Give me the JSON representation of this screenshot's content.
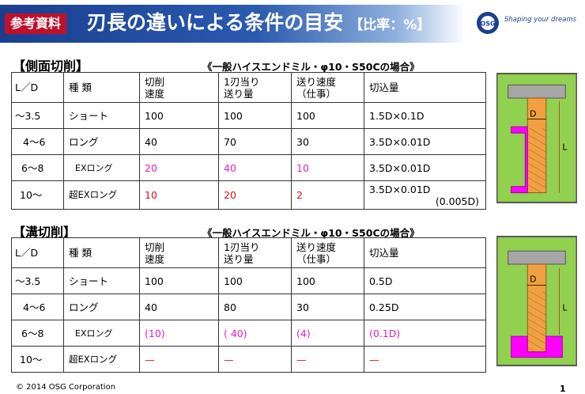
{
  "header": {
    "tag": "参考資料",
    "title": "刃長の違いによる条件の目安",
    "ratio": "【比率：%】",
    "logo_text": "OSG",
    "tagline": "Shaping your dreams"
  },
  "sections": [
    {
      "title": "【側面切削】",
      "condition": "《一般ハイスエンドミル・φ10・S50Cの場合》",
      "headers": [
        "L／D",
        "種 類",
        "切削\n速度",
        "1刃当り\n送り量",
        "送り速度\n（仕事）",
        "切込量"
      ],
      "rows": [
        {
          "ld": "～3.5",
          "type": "ショート",
          "speed": "100",
          "feed": "100",
          "rate": "100",
          "depth": "1.5D×0.1D",
          "depth2": ""
        },
        {
          "ld": "4～6",
          "type": "ロング",
          "speed": "40",
          "feed": "70",
          "rate": "30",
          "depth": "3.5D×0.01D",
          "depth2": ""
        },
        {
          "ld": "6～8",
          "type": "EXロング",
          "speed": "20",
          "feed": "40",
          "rate": "10",
          "depth": "3.5D×0.01D",
          "depth2": ""
        },
        {
          "ld": "10～",
          "type": "超EXロング",
          "speed": "10",
          "feed": "20",
          "rate": "2",
          "depth": "3.5D×0.01D",
          "depth2": "(0.005D)"
        }
      ],
      "figure": {
        "label_d": "D",
        "label_l": "L"
      }
    },
    {
      "title": "【溝切削】",
      "condition": "《一般ハイスエンドミル・φ10・S50Cの場合》",
      "headers": [
        "L／D",
        "種 類",
        "切削\n速度",
        "1刃当り\n送り量",
        "送り速度\n（仕事）",
        "切込量"
      ],
      "rows": [
        {
          "ld": "～3.5",
          "type": "ショート",
          "speed": "100",
          "feed": "100",
          "rate": "100",
          "depth": "0.5D"
        },
        {
          "ld": "4～6",
          "type": "ロング",
          "speed": "40",
          "feed": "80",
          "rate": "30",
          "depth": "0.25D"
        },
        {
          "ld": "6～8",
          "type": "EXロング",
          "speed": "(10)",
          "feed": "( 40)",
          "rate": "(4)",
          "depth": "(0.1D)"
        },
        {
          "ld": "10～",
          "type": "超EXロング",
          "speed": "—",
          "feed": "—",
          "rate": "—",
          "depth": "—"
        }
      ],
      "figure": {
        "label_d": "D",
        "label_l": "L"
      }
    }
  ],
  "footer": {
    "copyright": "© 2014 OSG Corporation",
    "page": "1"
  },
  "colors": {
    "header_blue": "#1a3f8f",
    "tag_red": "#c0102a",
    "figure_green": "#92d050",
    "tool_orange": "#f0a040",
    "workpiece_magenta": "#ff00ff",
    "highlight_pink": "#e020c0",
    "highlight_red": "#e01010"
  }
}
